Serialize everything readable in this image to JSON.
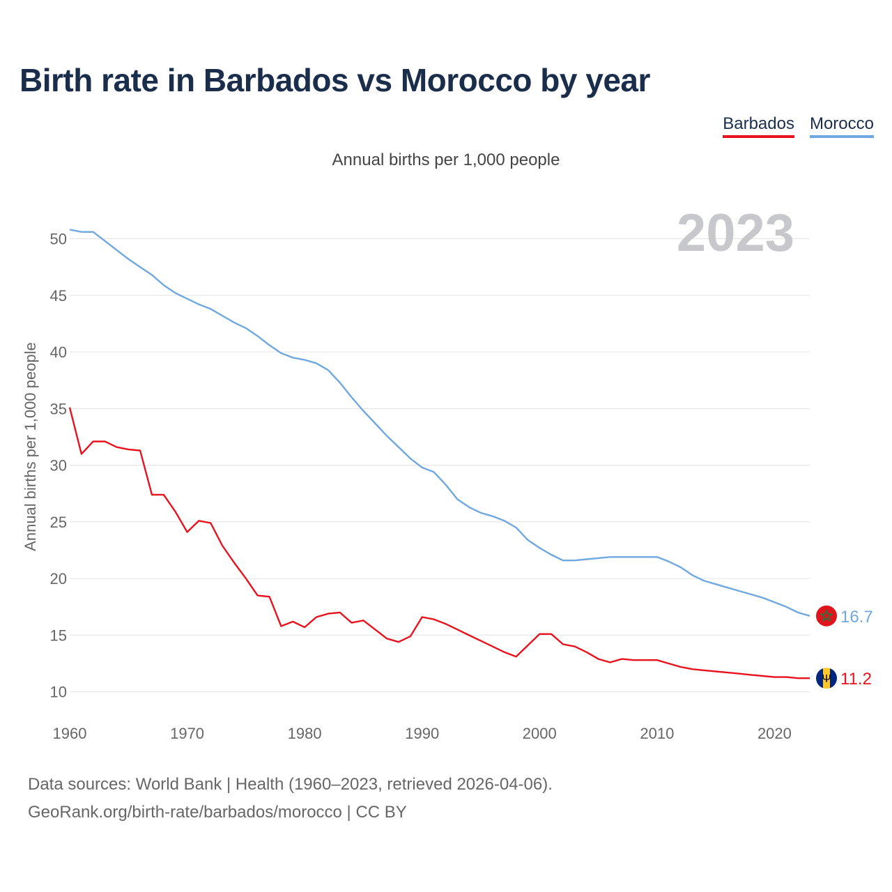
{
  "chart_data": {
    "type": "line",
    "title": "Birth rate in Barbados vs Morocco by year",
    "subtitle": "Annual births per 1,000 people",
    "ylabel": "Annual births per 1,000 people",
    "xlabel": "",
    "year_label": "2023",
    "xlim": [
      1960,
      2023
    ],
    "ylim": [
      8.2,
      52
    ],
    "x_ticks": [
      1960,
      1970,
      1980,
      1990,
      2000,
      2010,
      2020
    ],
    "y_ticks": [
      10,
      15,
      20,
      25,
      30,
      35,
      40,
      45,
      50
    ],
    "x": [
      1960,
      1961,
      1962,
      1963,
      1964,
      1965,
      1966,
      1967,
      1968,
      1969,
      1970,
      1971,
      1972,
      1973,
      1974,
      1975,
      1976,
      1977,
      1978,
      1979,
      1980,
      1981,
      1982,
      1983,
      1984,
      1985,
      1986,
      1987,
      1988,
      1989,
      1990,
      1991,
      1992,
      1993,
      1994,
      1995,
      1996,
      1997,
      1998,
      1999,
      2000,
      2001,
      2002,
      2003,
      2004,
      2005,
      2006,
      2007,
      2008,
      2009,
      2010,
      2011,
      2012,
      2013,
      2014,
      2015,
      2016,
      2017,
      2018,
      2019,
      2020,
      2021,
      2022,
      2023
    ],
    "series": [
      {
        "name": "Barbados",
        "color": "#e8121e",
        "end_label": "11.2",
        "values": [
          35.1,
          31.0,
          32.1,
          32.1,
          31.6,
          31.4,
          31.3,
          27.4,
          27.4,
          25.9,
          24.1,
          25.1,
          24.9,
          22.9,
          21.4,
          20.0,
          18.5,
          18.4,
          15.8,
          16.2,
          15.7,
          16.6,
          16.9,
          17.0,
          16.1,
          16.3,
          15.5,
          14.7,
          14.4,
          14.9,
          16.6,
          16.4,
          16.0,
          15.5,
          15.0,
          14.5,
          14.0,
          13.5,
          13.1,
          14.1,
          15.1,
          15.1,
          14.2,
          14.0,
          13.5,
          12.9,
          12.6,
          12.9,
          12.8,
          12.8,
          12.8,
          12.5,
          12.2,
          12.0,
          11.9,
          11.8,
          11.7,
          11.6,
          11.5,
          11.4,
          11.3,
          11.3,
          11.2,
          11.2
        ]
      },
      {
        "name": "Morocco",
        "color": "#6fa8e0",
        "end_label": "16.7",
        "values": [
          50.8,
          50.6,
          50.6,
          49.8,
          49.0,
          48.2,
          47.5,
          46.8,
          45.9,
          45.2,
          44.7,
          44.2,
          43.8,
          43.2,
          42.6,
          42.1,
          41.4,
          40.6,
          39.9,
          39.5,
          39.3,
          39.0,
          38.4,
          37.3,
          36.0,
          34.8,
          33.7,
          32.6,
          31.6,
          30.6,
          29.8,
          29.4,
          28.3,
          27.0,
          26.3,
          25.8,
          25.5,
          25.1,
          24.5,
          23.4,
          22.7,
          22.1,
          21.6,
          21.6,
          21.7,
          21.8,
          21.9,
          21.9,
          21.9,
          21.9,
          21.9,
          21.5,
          21.0,
          20.3,
          19.8,
          19.5,
          19.2,
          18.9,
          18.6,
          18.3,
          17.9,
          17.5,
          17.0,
          16.7
        ]
      }
    ],
    "flag_icons": [
      "morocco-flag-icon",
      "barbados-flag-icon"
    ],
    "colors": {
      "grid": "#e6e6e6",
      "tick_text": "#666666",
      "year_watermark": "#c6c8cc"
    }
  },
  "footer": {
    "line1": "Data sources: World Bank | Health (1960–2023, retrieved 2026-04-06).",
    "line2": "GeoRank.org/birth-rate/barbados/morocco | CC BY"
  }
}
